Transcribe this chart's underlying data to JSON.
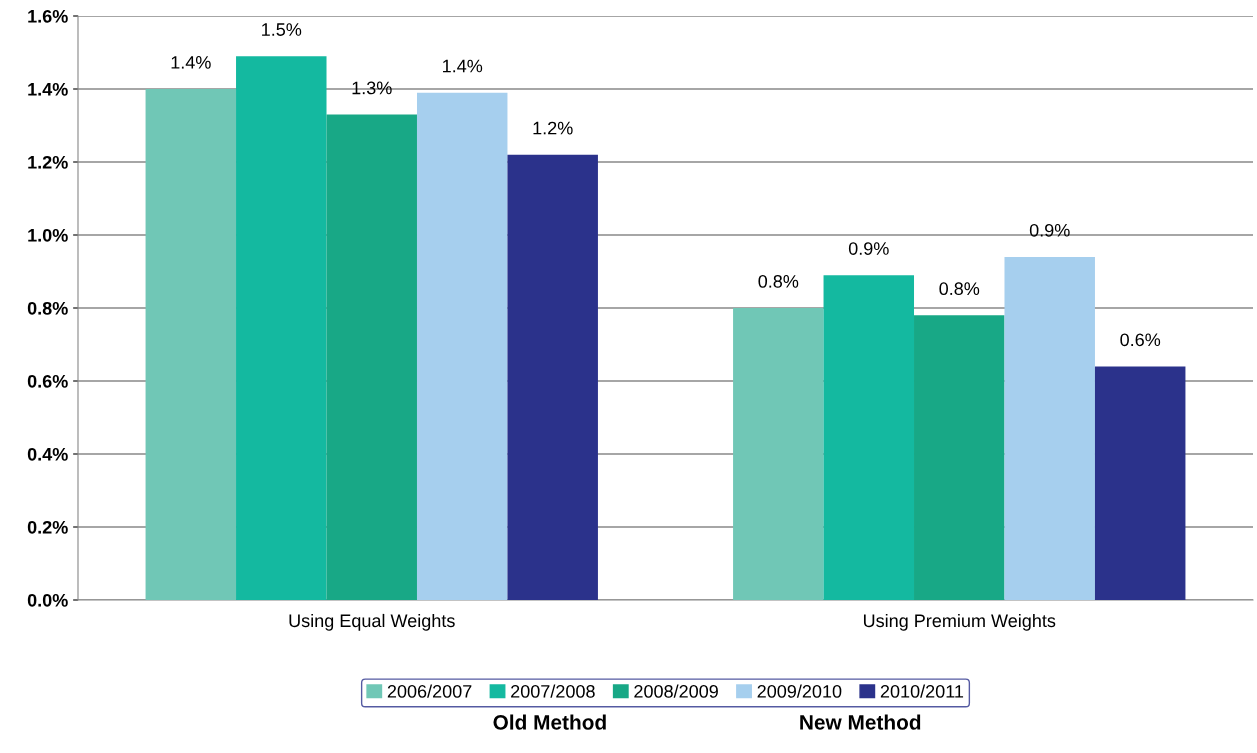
{
  "chart_data": {
    "type": "bar",
    "categories": [
      "Using Equal Weights",
      "Using Premium Weights"
    ],
    "series": [
      {
        "name": "2006/2007",
        "color": "#70c7b6",
        "values": [
          1.4,
          0.8
        ],
        "value_labels": [
          "1.4%",
          "0.8%"
        ]
      },
      {
        "name": "2007/2008",
        "color": "#14b9a0",
        "values": [
          1.49,
          0.89
        ],
        "value_labels": [
          "1.5%",
          "0.9%"
        ]
      },
      {
        "name": "2008/2009",
        "color": "#18a886",
        "values": [
          1.33,
          0.78
        ],
        "value_labels": [
          "1.3%",
          "0.8%"
        ]
      },
      {
        "name": "2009/2010",
        "color": "#a6cfee",
        "values": [
          1.39,
          0.94
        ],
        "value_labels": [
          "1.4%",
          "0.9%"
        ]
      },
      {
        "name": "2010/2011",
        "color": "#2b328b",
        "values": [
          1.22,
          0.64
        ],
        "value_labels": [
          "1.2%",
          "0.6%"
        ]
      }
    ],
    "ylim": [
      0,
      1.6
    ],
    "yticks": [
      {
        "value": 0,
        "label": "0.0%"
      },
      {
        "value": 0.2,
        "label": "0.2%"
      },
      {
        "value": 0.4,
        "label": "0.4%"
      },
      {
        "value": 0.6,
        "label": "0.6%"
      },
      {
        "value": 0.8,
        "label": "0.8%"
      },
      {
        "value": 1.0,
        "label": "1.0%"
      },
      {
        "value": 1.2,
        "label": "1.2%"
      },
      {
        "value": 1.4,
        "label": "1.4%"
      },
      {
        "value": 1.6,
        "label": "1.6%"
      }
    ],
    "grid": "y",
    "legend": "bottom",
    "annotations": [
      "Old Method",
      "New Method"
    ]
  }
}
